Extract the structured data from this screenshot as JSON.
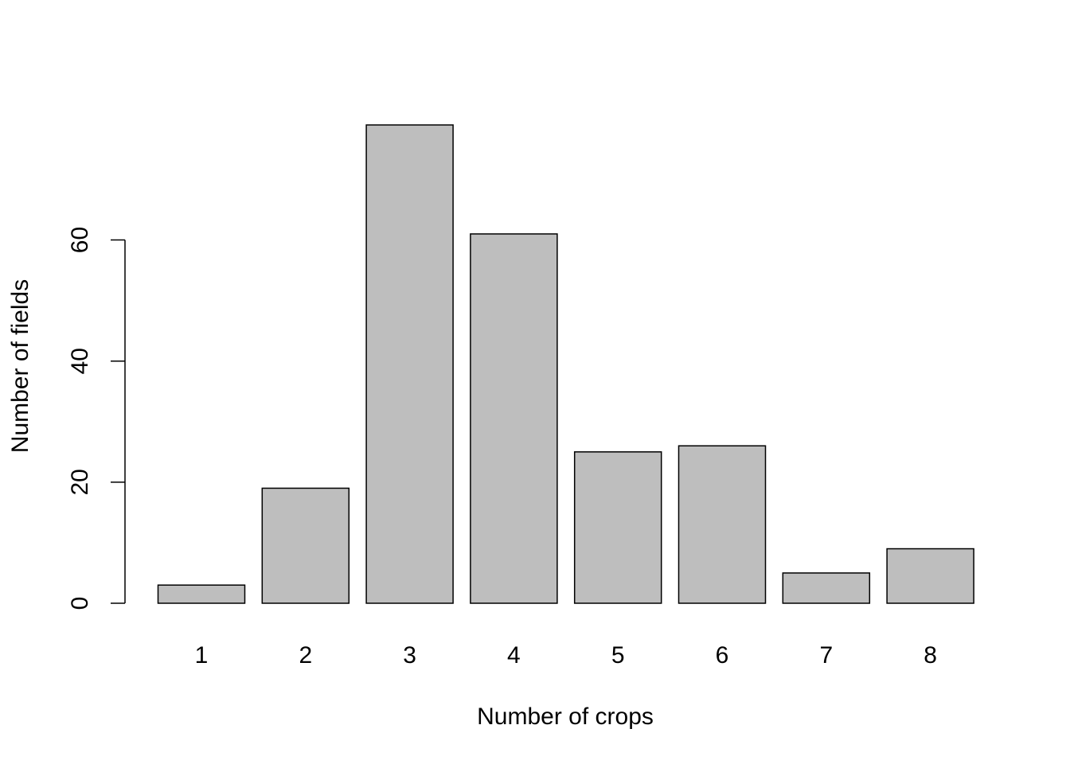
{
  "chart_data": {
    "type": "bar",
    "categories": [
      "1",
      "2",
      "3",
      "4",
      "5",
      "6",
      "7",
      "8"
    ],
    "values": [
      3,
      19,
      79,
      61,
      25,
      26,
      5,
      9
    ],
    "title": "",
    "xlabel": "Number of crops",
    "ylabel": "Number of fields",
    "ylim": [
      0,
      79
    ],
    "yticks": [
      0,
      20,
      40,
      60
    ],
    "ytick_labels": [
      "0",
      "20",
      "40",
      "60"
    ],
    "grid": false,
    "legend": "none",
    "colors": {
      "bar_fill": "#bebebe",
      "bar_stroke": "#000000",
      "axis": "#000000"
    }
  }
}
